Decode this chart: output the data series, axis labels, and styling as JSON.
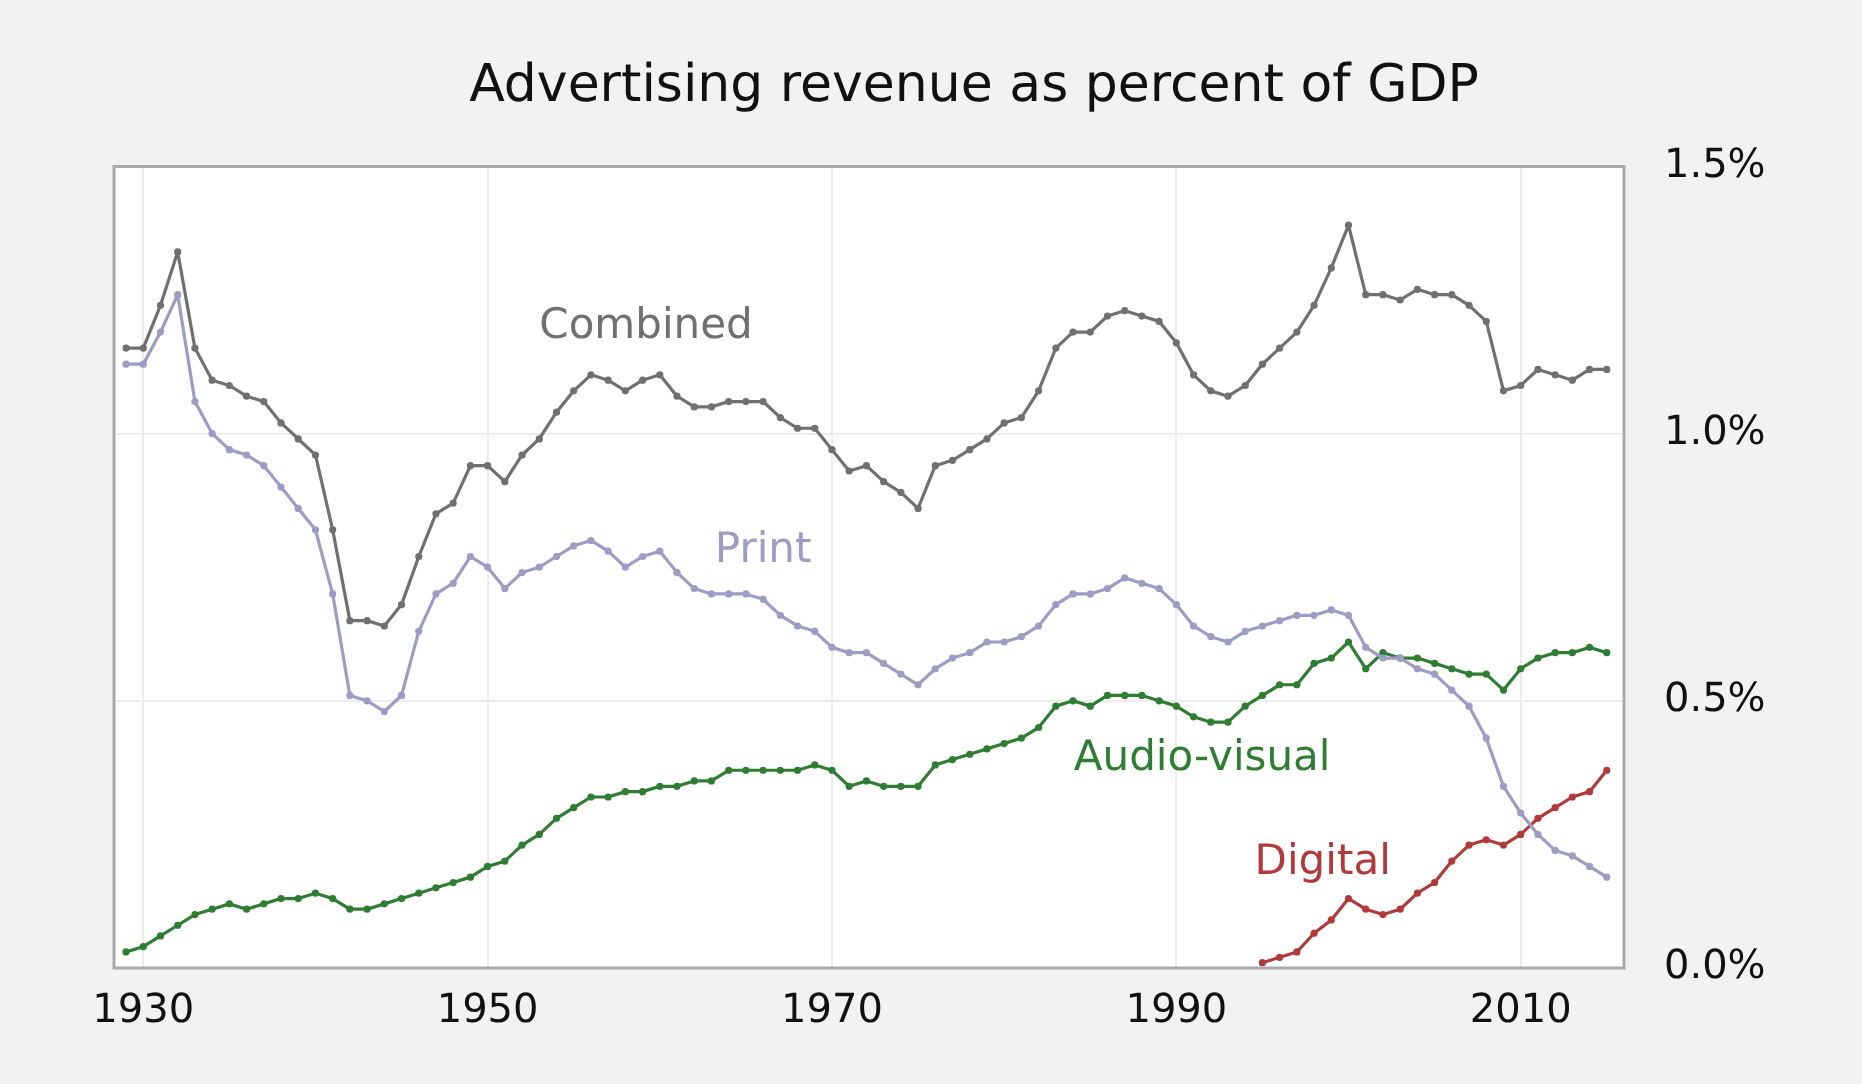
{
  "chart_data": {
    "type": "line",
    "title": "Advertising revenue as percent of GDP",
    "x": [
      1929,
      1930,
      1931,
      1932,
      1933,
      1934,
      1935,
      1936,
      1937,
      1938,
      1939,
      1940,
      1941,
      1942,
      1943,
      1944,
      1945,
      1946,
      1947,
      1948,
      1949,
      1950,
      1951,
      1952,
      1953,
      1954,
      1955,
      1956,
      1957,
      1958,
      1959,
      1960,
      1961,
      1962,
      1963,
      1964,
      1965,
      1966,
      1967,
      1968,
      1969,
      1970,
      1971,
      1972,
      1973,
      1974,
      1975,
      1976,
      1977,
      1978,
      1979,
      1980,
      1981,
      1982,
      1983,
      1984,
      1985,
      1986,
      1987,
      1988,
      1989,
      1990,
      1991,
      1992,
      1993,
      1994,
      1995,
      1996,
      1997,
      1998,
      1999,
      2000,
      2001,
      2002,
      2003,
      2004,
      2005,
      2006,
      2007,
      2008,
      2009,
      2010,
      2011,
      2012,
      2013,
      2014,
      2015
    ],
    "series": [
      {
        "name": "Combined",
        "color": "#707070",
        "values": [
          1.16,
          1.16,
          1.24,
          1.34,
          1.16,
          1.1,
          1.09,
          1.07,
          1.06,
          1.02,
          0.99,
          0.96,
          0.82,
          0.65,
          0.65,
          0.64,
          0.68,
          0.77,
          0.85,
          0.87,
          0.94,
          0.94,
          0.91,
          0.96,
          0.99,
          1.04,
          1.08,
          1.11,
          1.1,
          1.08,
          1.1,
          1.11,
          1.07,
          1.05,
          1.05,
          1.06,
          1.06,
          1.06,
          1.03,
          1.01,
          1.01,
          0.97,
          0.93,
          0.94,
          0.91,
          0.89,
          0.86,
          0.94,
          0.95,
          0.97,
          0.99,
          1.02,
          1.03,
          1.08,
          1.16,
          1.19,
          1.19,
          1.22,
          1.23,
          1.22,
          1.21,
          1.17,
          1.11,
          1.08,
          1.07,
          1.09,
          1.13,
          1.16,
          1.19,
          1.24,
          1.31,
          1.39,
          1.26,
          1.26,
          1.25,
          1.27,
          1.26,
          1.26,
          1.24,
          1.21,
          1.08,
          1.09,
          1.12,
          1.11,
          1.1,
          1.12,
          1.12
        ]
      },
      {
        "name": "Print",
        "color": "#9c9cc4",
        "values": [
          1.13,
          1.13,
          1.19,
          1.26,
          1.06,
          1.0,
          0.97,
          0.96,
          0.94,
          0.9,
          0.86,
          0.82,
          0.7,
          0.51,
          0.5,
          0.48,
          0.51,
          0.63,
          0.7,
          0.72,
          0.77,
          0.75,
          0.71,
          0.74,
          0.75,
          0.77,
          0.79,
          0.8,
          0.78,
          0.75,
          0.77,
          0.78,
          0.74,
          0.71,
          0.7,
          0.7,
          0.7,
          0.69,
          0.66,
          0.64,
          0.63,
          0.6,
          0.59,
          0.59,
          0.57,
          0.55,
          0.53,
          0.56,
          0.58,
          0.59,
          0.61,
          0.61,
          0.62,
          0.64,
          0.68,
          0.7,
          0.7,
          0.71,
          0.73,
          0.72,
          0.71,
          0.68,
          0.64,
          0.62,
          0.61,
          0.63,
          0.64,
          0.65,
          0.66,
          0.66,
          0.67,
          0.66,
          0.6,
          0.58,
          0.58,
          0.56,
          0.55,
          0.52,
          0.49,
          0.43,
          0.34,
          0.29,
          0.25,
          0.22,
          0.21,
          0.19,
          0.17
        ]
      },
      {
        "name": "Audio-visual",
        "color": "#2e7d32",
        "values": [
          0.03,
          0.04,
          0.06,
          0.08,
          0.1,
          0.11,
          0.12,
          0.11,
          0.12,
          0.13,
          0.13,
          0.14,
          0.13,
          0.11,
          0.11,
          0.12,
          0.13,
          0.14,
          0.15,
          0.16,
          0.17,
          0.19,
          0.2,
          0.23,
          0.25,
          0.28,
          0.3,
          0.32,
          0.32,
          0.33,
          0.33,
          0.34,
          0.34,
          0.35,
          0.35,
          0.37,
          0.37,
          0.37,
          0.37,
          0.37,
          0.38,
          0.37,
          0.34,
          0.35,
          0.34,
          0.34,
          0.34,
          0.38,
          0.39,
          0.4,
          0.41,
          0.42,
          0.43,
          0.45,
          0.49,
          0.5,
          0.49,
          0.51,
          0.51,
          0.51,
          0.5,
          0.49,
          0.47,
          0.46,
          0.46,
          0.49,
          0.51,
          0.53,
          0.53,
          0.57,
          0.58,
          0.61,
          0.56,
          0.59,
          0.58,
          0.58,
          0.57,
          0.56,
          0.55,
          0.55,
          0.52,
          0.56,
          0.58,
          0.59,
          0.59,
          0.6,
          0.59
        ]
      },
      {
        "name": "Digital",
        "color": "#b03a3a",
        "x": [
          1995,
          1996,
          1997,
          1998,
          1999,
          2000,
          2001,
          2002,
          2003,
          2004,
          2005,
          2006,
          2007,
          2008,
          2009,
          2010,
          2011,
          2012,
          2013,
          2014,
          2015
        ],
        "values": [
          0.01,
          0.02,
          0.03,
          0.065,
          0.09,
          0.13,
          0.11,
          0.1,
          0.11,
          0.14,
          0.16,
          0.2,
          0.23,
          0.24,
          0.23,
          0.25,
          0.28,
          0.3,
          0.32,
          0.33,
          0.37
        ]
      }
    ],
    "xlim": [
      1928.3,
      2016
    ],
    "xticks": [
      1930,
      1950,
      1970,
      1990,
      2010
    ],
    "ylim": [
      0,
      1.5
    ],
    "yticks": [
      {
        "value": 0,
        "label": "0.0%"
      },
      {
        "value": 0.5,
        "label": "0.5%"
      },
      {
        "value": 1,
        "label": "1.0%"
      },
      {
        "value": 1.5,
        "label": "1.5%"
      }
    ],
    "grid": true,
    "legend": false,
    "marker": "circle",
    "line_style": "solid"
  }
}
